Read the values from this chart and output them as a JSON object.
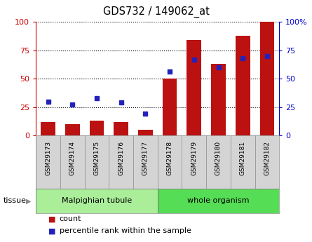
{
  "title": "GDS732 / 149062_at",
  "samples": [
    "GSM29173",
    "GSM29174",
    "GSM29175",
    "GSM29176",
    "GSM29177",
    "GSM29178",
    "GSM29179",
    "GSM29180",
    "GSM29181",
    "GSM29182"
  ],
  "counts": [
    12,
    10,
    13,
    12,
    5,
    50,
    84,
    63,
    88,
    100
  ],
  "percentiles": [
    30,
    27,
    33,
    29,
    19,
    56,
    67,
    60,
    68,
    70
  ],
  "groups": [
    {
      "label": "Malpighian tubule",
      "start": 0,
      "end": 5,
      "color": "#aaee99"
    },
    {
      "label": "whole organism",
      "start": 5,
      "end": 10,
      "color": "#55dd55"
    }
  ],
  "bar_color": "#bb1111",
  "dot_color": "#2222bb",
  "left_axis_color": "#cc0000",
  "right_axis_color": "#0000cc",
  "ylim": [
    0,
    100
  ],
  "yticks": [
    0,
    25,
    50,
    75,
    100
  ],
  "tissue_label": "tissue",
  "legend_count_label": "count",
  "legend_pct_label": "percentile rank within the sample",
  "bar_width": 0.6,
  "bg_color": "#ffffff",
  "tick_bg_color": "#d4d4d4",
  "tick_border_color": "#888888"
}
